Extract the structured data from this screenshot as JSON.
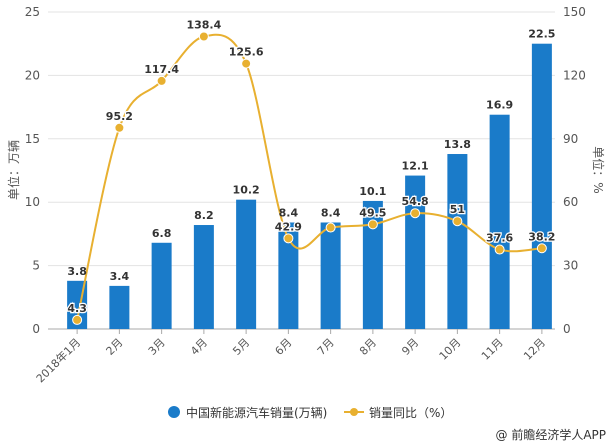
{
  "chart_data": {
    "type": "bar+line",
    "categories": [
      "2018年1月",
      "2月",
      "3月",
      "4月",
      "5月",
      "6月",
      "7月",
      "8月",
      "9月",
      "10月",
      "11月",
      "12月"
    ],
    "series": [
      {
        "name": "中国新能源汽车销量(万辆)",
        "type": "bar",
        "axis": "left",
        "color": "#1a7bc9",
        "values": [
          3.8,
          3.4,
          6.8,
          8.2,
          10.2,
          8.4,
          8.4,
          10.1,
          12.1,
          13.8,
          16.9,
          22.5
        ]
      },
      {
        "name": "销量同比（%）",
        "type": "line",
        "axis": "right",
        "color": "#e8b030",
        "values": [
          4.3,
          95.2,
          117.4,
          138.4,
          125.6,
          42.9,
          48.0,
          49.5,
          54.8,
          51,
          37.6,
          38.2
        ],
        "labels": [
          "4.3",
          "95.2",
          "117.4",
          "138.4",
          "125.6",
          "42.9",
          "",
          "49.5",
          "54.8",
          "51",
          "37.6",
          "38.2"
        ]
      }
    ],
    "ylabel": "单位：万辆",
    "y2label": "单位：%",
    "ylim": [
      0,
      25
    ],
    "yticks": [
      0,
      5,
      10,
      15,
      20,
      25
    ],
    "y2lim": [
      0,
      150
    ],
    "y2ticks": [
      0,
      30,
      60,
      90,
      120,
      150
    ],
    "grid": true,
    "legend": "bottom"
  },
  "source": "@ 前瞻经济学人APP"
}
